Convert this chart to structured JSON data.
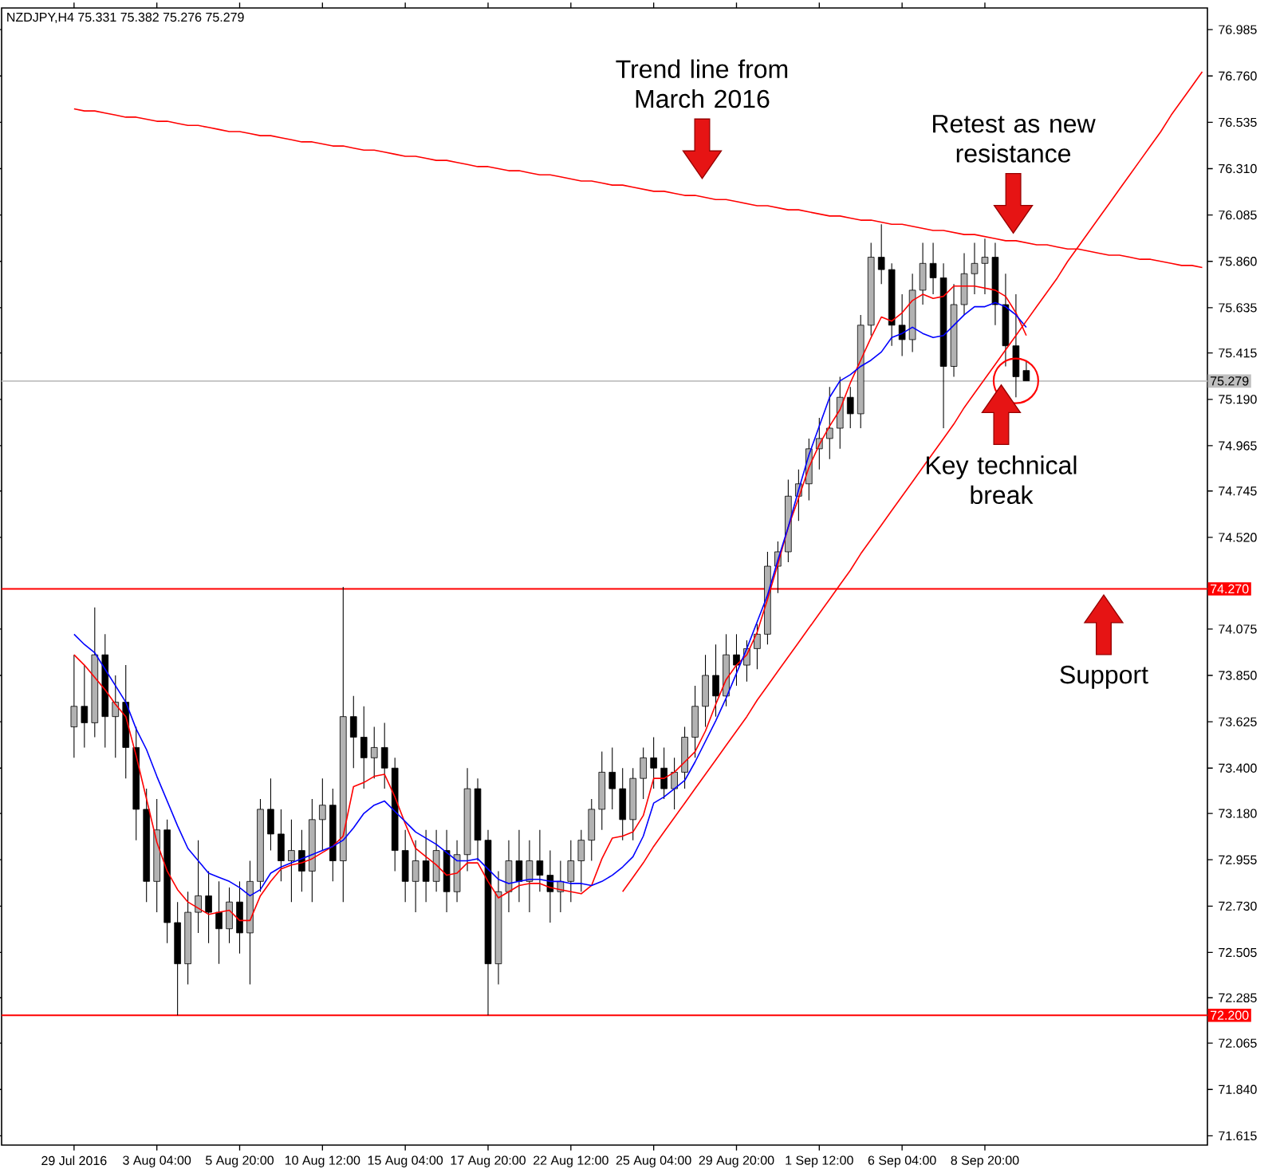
{
  "chart_data": {
    "type": "candlestick",
    "title": "NZDJPY,H4  75.331 75.382 75.276 75.279",
    "categories": [
      "29 Jul 2016",
      null,
      null,
      null,
      null,
      null,
      null,
      null,
      "3 Aug 04:00",
      null,
      null,
      null,
      null,
      null,
      null,
      null,
      "5 Aug 20:00",
      null,
      null,
      null,
      null,
      null,
      null,
      null,
      "10 Aug 12:00",
      null,
      null,
      null,
      null,
      null,
      null,
      null,
      "15 Aug 04:00",
      null,
      null,
      null,
      null,
      null,
      null,
      null,
      "17 Aug 20:00",
      null,
      null,
      null,
      null,
      null,
      null,
      null,
      "22 Aug 12:00",
      null,
      null,
      null,
      null,
      null,
      null,
      null,
      "25 Aug 04:00",
      null,
      null,
      null,
      null,
      null,
      null,
      null,
      "29 Aug 20:00",
      null,
      null,
      null,
      null,
      null,
      null,
      null,
      "1 Sep 12:00",
      null,
      null,
      null,
      null,
      null,
      null,
      null,
      "6 Sep 04:00",
      null,
      null,
      null,
      null,
      null,
      null,
      null,
      "8 Sep 20:00",
      null,
      null,
      null,
      null,
      null,
      null,
      null,
      null,
      null,
      null,
      null,
      null,
      null,
      null,
      null,
      null,
      null,
      null,
      null,
      null,
      null
    ],
    "ohlc": [
      [
        73.6,
        73.95,
        73.45,
        73.7
      ],
      [
        73.7,
        73.9,
        73.5,
        73.62
      ],
      [
        73.62,
        74.18,
        73.55,
        73.95
      ],
      [
        73.95,
        74.05,
        73.5,
        73.65
      ],
      [
        73.65,
        73.85,
        73.45,
        73.72
      ],
      [
        73.72,
        73.9,
        73.35,
        73.5
      ],
      [
        73.5,
        73.6,
        73.05,
        73.2
      ],
      [
        73.2,
        73.3,
        72.75,
        72.85
      ],
      [
        72.85,
        73.25,
        72.7,
        73.1
      ],
      [
        73.1,
        73.15,
        72.55,
        72.65
      ],
      [
        72.65,
        72.75,
        72.2,
        72.45
      ],
      [
        72.45,
        72.8,
        72.35,
        72.7
      ],
      [
        72.7,
        73.05,
        72.6,
        72.78
      ],
      [
        72.78,
        72.9,
        72.55,
        72.7
      ],
      [
        72.7,
        72.85,
        72.45,
        72.62
      ],
      [
        72.62,
        72.82,
        72.55,
        72.75
      ],
      [
        72.75,
        72.85,
        72.5,
        72.6
      ],
      [
        72.6,
        72.95,
        72.35,
        72.85
      ],
      [
        72.85,
        73.25,
        72.8,
        73.2
      ],
      [
        73.2,
        73.35,
        73.0,
        73.08
      ],
      [
        73.08,
        73.2,
        72.85,
        72.95
      ],
      [
        72.95,
        73.15,
        72.75,
        73.0
      ],
      [
        73.0,
        73.1,
        72.8,
        72.9
      ],
      [
        72.9,
        73.25,
        72.75,
        73.15
      ],
      [
        73.15,
        73.35,
        73.0,
        73.22
      ],
      [
        73.22,
        73.3,
        72.85,
        72.95
      ],
      [
        72.95,
        74.28,
        72.75,
        73.65
      ],
      [
        73.65,
        73.75,
        73.4,
        73.55
      ],
      [
        73.55,
        73.7,
        73.3,
        73.45
      ],
      [
        73.45,
        73.6,
        73.35,
        73.5
      ],
      [
        73.5,
        73.62,
        73.3,
        73.4
      ],
      [
        73.4,
        73.45,
        72.9,
        73.0
      ],
      [
        73.0,
        73.1,
        72.75,
        72.85
      ],
      [
        72.85,
        73.05,
        72.7,
        72.95
      ],
      [
        72.95,
        73.1,
        72.75,
        72.85
      ],
      [
        72.85,
        73.1,
        72.8,
        73.0
      ],
      [
        73.0,
        73.1,
        72.7,
        72.8
      ],
      [
        72.8,
        73.05,
        72.75,
        72.98
      ],
      [
        72.98,
        73.4,
        72.9,
        73.3
      ],
      [
        73.3,
        73.35,
        72.95,
        73.05
      ],
      [
        73.05,
        73.1,
        72.2,
        72.45
      ],
      [
        72.45,
        72.9,
        72.35,
        72.8
      ],
      [
        72.8,
        73.05,
        72.7,
        72.95
      ],
      [
        72.95,
        73.1,
        72.75,
        72.85
      ],
      [
        72.85,
        73.05,
        72.7,
        72.95
      ],
      [
        72.95,
        73.1,
        72.8,
        72.88
      ],
      [
        72.88,
        73.0,
        72.65,
        72.8
      ],
      [
        72.8,
        72.95,
        72.7,
        72.85
      ],
      [
        72.85,
        73.05,
        72.75,
        72.95
      ],
      [
        72.95,
        73.1,
        72.8,
        73.05
      ],
      [
        73.05,
        73.25,
        72.95,
        73.2
      ],
      [
        73.2,
        73.48,
        73.1,
        73.38
      ],
      [
        73.38,
        73.5,
        73.2,
        73.3
      ],
      [
        73.3,
        73.4,
        73.05,
        73.15
      ],
      [
        73.15,
        73.4,
        73.05,
        73.35
      ],
      [
        73.35,
        73.5,
        73.25,
        73.45
      ],
      [
        73.45,
        73.55,
        73.3,
        73.4
      ],
      [
        73.4,
        73.5,
        73.25,
        73.3
      ],
      [
        73.3,
        73.45,
        73.2,
        73.38
      ],
      [
        73.38,
        73.6,
        73.3,
        73.55
      ],
      [
        73.55,
        73.8,
        73.45,
        73.7
      ],
      [
        73.7,
        73.95,
        73.6,
        73.85
      ],
      [
        73.85,
        74.0,
        73.65,
        73.75
      ],
      [
        73.75,
        74.05,
        73.7,
        73.95
      ],
      [
        73.95,
        74.05,
        73.8,
        73.9
      ],
      [
        73.9,
        74.02,
        73.82,
        73.98
      ],
      [
        73.98,
        74.1,
        73.88,
        74.05
      ],
      [
        74.05,
        74.45,
        74.0,
        74.38
      ],
      [
        74.38,
        74.5,
        74.25,
        74.45
      ],
      [
        74.45,
        74.8,
        74.4,
        74.72
      ],
      [
        74.72,
        74.85,
        74.6,
        74.78
      ],
      [
        74.78,
        75.0,
        74.7,
        74.95
      ],
      [
        74.95,
        75.1,
        74.85,
        75.0
      ],
      [
        75.0,
        75.25,
        74.9,
        75.05
      ],
      [
        75.05,
        75.3,
        74.95,
        75.2
      ],
      [
        75.2,
        75.25,
        75.05,
        75.12
      ],
      [
        75.12,
        75.6,
        75.05,
        75.55
      ],
      [
        75.55,
        75.95,
        75.5,
        75.88
      ],
      [
        75.88,
        76.04,
        75.75,
        75.82
      ],
      [
        75.82,
        75.85,
        75.45,
        75.55
      ],
      [
        75.55,
        75.7,
        75.4,
        75.48
      ],
      [
        75.48,
        75.8,
        75.42,
        75.72
      ],
      [
        75.72,
        75.95,
        75.65,
        75.85
      ],
      [
        75.85,
        75.95,
        75.7,
        75.78
      ],
      [
        75.78,
        75.85,
        75.05,
        75.35
      ],
      [
        75.35,
        75.75,
        75.3,
        75.65
      ],
      [
        75.65,
        75.9,
        75.6,
        75.8
      ],
      [
        75.8,
        75.95,
        75.7,
        75.85
      ],
      [
        75.85,
        75.97,
        75.7,
        75.88
      ],
      [
        75.88,
        75.95,
        75.55,
        75.65
      ],
      [
        75.65,
        75.8,
        75.35,
        75.45
      ],
      [
        75.45,
        75.7,
        75.2,
        75.3
      ],
      [
        75.33,
        75.38,
        75.28,
        75.28
      ],
      null,
      null,
      null,
      null,
      null,
      null,
      null,
      null,
      null,
      null,
      null,
      null,
      null,
      null,
      null,
      null,
      null
    ],
    "series": [
      {
        "type": "line",
        "color": "#ff0000",
        "values": [
          73.95,
          73.9,
          73.84,
          73.78,
          73.71,
          73.65,
          73.46,
          73.25,
          73.04,
          72.9,
          72.81,
          72.75,
          72.72,
          72.69,
          72.7,
          72.71,
          72.66,
          72.66,
          72.78,
          72.85,
          72.91,
          72.93,
          72.94,
          72.96,
          72.99,
          73.02,
          73.07,
          73.31,
          73.33,
          73.36,
          73.37,
          73.26,
          73.13,
          73.01,
          72.97,
          72.93,
          72.88,
          72.89,
          72.94,
          72.94,
          72.85,
          72.77,
          72.8,
          72.83,
          72.84,
          72.84,
          72.82,
          72.81,
          72.8,
          72.79,
          72.83,
          72.96,
          73.06,
          73.07,
          73.09,
          73.17,
          73.35,
          73.35,
          73.38,
          73.43,
          73.48,
          73.58,
          73.71,
          73.83,
          73.9,
          73.95,
          74.06,
          74.22,
          74.39,
          74.57,
          74.71,
          74.86,
          74.97,
          75.06,
          75.14,
          75.27,
          75.38,
          75.49,
          75.59,
          75.57,
          75.61,
          75.67,
          75.7,
          75.68,
          75.69,
          75.74,
          75.74,
          75.74,
          75.73,
          75.72,
          75.69,
          75.61,
          75.5,
          null,
          null,
          null,
          null,
          null,
          null,
          null,
          null,
          null,
          null,
          null,
          null,
          null,
          null,
          null,
          null,
          null
        ]
      },
      {
        "type": "line",
        "color": "#0000ff",
        "values": [
          74.05,
          74.0,
          73.96,
          73.88,
          73.8,
          73.72,
          73.59,
          73.49,
          73.36,
          73.24,
          73.12,
          73.01,
          72.95,
          72.89,
          72.87,
          72.85,
          72.82,
          72.78,
          72.81,
          72.89,
          72.92,
          72.94,
          72.96,
          72.98,
          73.0,
          73.02,
          73.05,
          73.11,
          73.18,
          73.22,
          73.24,
          73.19,
          73.14,
          73.09,
          73.06,
          73.03,
          72.99,
          72.95,
          72.95,
          72.96,
          72.91,
          72.86,
          72.84,
          72.85,
          72.86,
          72.86,
          72.85,
          72.85,
          72.84,
          72.84,
          72.83,
          72.85,
          72.88,
          72.92,
          72.97,
          73.07,
          73.23,
          73.26,
          73.3,
          73.34,
          73.43,
          73.53,
          73.63,
          73.74,
          73.86,
          73.98,
          74.11,
          74.24,
          74.41,
          74.57,
          74.75,
          74.92,
          75.06,
          75.2,
          75.28,
          75.31,
          75.35,
          75.38,
          75.42,
          75.49,
          75.51,
          75.54,
          75.51,
          75.49,
          75.5,
          75.55,
          75.6,
          75.64,
          75.64,
          75.66,
          75.64,
          75.6,
          75.54,
          null,
          null,
          null,
          null,
          null,
          null,
          null,
          null,
          null,
          null,
          null,
          null,
          null,
          null,
          null,
          null,
          null
        ]
      },
      {
        "type": "line",
        "color": "#ff0000",
        "values": [
          76.6,
          76.59,
          76.59,
          76.58,
          76.57,
          76.56,
          76.56,
          76.55,
          76.54,
          76.54,
          76.53,
          76.52,
          76.52,
          76.51,
          76.5,
          76.49,
          76.49,
          76.48,
          76.47,
          76.47,
          76.46,
          76.45,
          76.44,
          76.44,
          76.43,
          76.42,
          76.42,
          76.41,
          76.4,
          76.4,
          76.39,
          76.38,
          76.37,
          76.37,
          76.36,
          76.35,
          76.35,
          76.34,
          76.33,
          76.32,
          76.32,
          76.31,
          76.3,
          76.3,
          76.29,
          76.28,
          76.28,
          76.27,
          76.26,
          76.25,
          76.25,
          76.24,
          76.23,
          76.23,
          76.22,
          76.21,
          76.2,
          76.2,
          76.19,
          76.18,
          76.18,
          76.17,
          76.16,
          76.16,
          76.15,
          76.14,
          76.13,
          76.13,
          76.12,
          76.11,
          76.11,
          76.1,
          76.09,
          76.08,
          76.08,
          76.07,
          76.06,
          76.06,
          76.05,
          76.04,
          76.04,
          76.03,
          76.02,
          76.01,
          76.01,
          76.0,
          75.99,
          75.99,
          75.98,
          75.97,
          75.96,
          75.96,
          75.95,
          75.94,
          75.94,
          75.93,
          75.92,
          75.92,
          75.91,
          75.9,
          75.89,
          75.89,
          75.88,
          75.87,
          75.87,
          75.86,
          75.85,
          75.84,
          75.84,
          75.83
        ]
      },
      {
        "type": "line",
        "color": "#ff0000",
        "values": [
          null,
          null,
          null,
          null,
          null,
          null,
          null,
          null,
          null,
          null,
          null,
          null,
          null,
          null,
          null,
          null,
          null,
          null,
          null,
          null,
          null,
          null,
          null,
          null,
          null,
          null,
          null,
          null,
          null,
          null,
          null,
          null,
          null,
          null,
          null,
          null,
          null,
          null,
          null,
          null,
          null,
          null,
          null,
          null,
          null,
          null,
          null,
          null,
          null,
          null,
          null,
          null,
          null,
          72.8,
          72.87,
          72.94,
          73.02,
          73.09,
          73.16,
          73.23,
          73.3,
          73.37,
          73.44,
          73.51,
          73.58,
          73.65,
          73.73,
          73.8,
          73.87,
          73.94,
          74.01,
          74.08,
          74.15,
          74.22,
          74.29,
          74.36,
          74.44,
          74.51,
          74.58,
          74.65,
          74.72,
          74.79,
          74.86,
          74.93,
          75.0,
          75.07,
          75.15,
          75.22,
          75.29,
          75.36,
          75.43,
          75.5,
          75.57,
          75.64,
          75.71,
          75.78,
          75.86,
          75.93,
          76.0,
          76.07,
          76.14,
          76.21,
          76.28,
          76.35,
          76.42,
          76.49,
          76.57,
          76.64,
          76.71,
          76.78
        ]
      }
    ],
    "ylim": [
      71.57,
      77.09
    ],
    "yticks": [
      76.985,
      {
        "value": 76.76,
        "label": "76.760"
      },
      76.535,
      {
        "value": 76.31,
        "label": "76.310"
      },
      76.085,
      {
        "value": 75.86,
        "label": "75.860"
      },
      75.635,
      75.415,
      {
        "value": 75.19,
        "label": "75.190"
      },
      74.965,
      74.745,
      {
        "value": 74.52,
        "label": "74.520"
      },
      74.075,
      {
        "value": 73.85,
        "label": "73.850"
      },
      73.625,
      {
        "value": 73.4,
        "label": "73.400"
      },
      {
        "value": 73.18,
        "label": "73.180"
      },
      72.955,
      {
        "value": 72.73,
        "label": "72.730"
      },
      72.505,
      72.285,
      72.065,
      {
        "value": 71.84,
        "label": "71.840"
      },
      71.615
    ],
    "ref_lines": [
      {
        "axis": "y",
        "value": 74.27,
        "label": "74.270",
        "color": "#ff0000"
      },
      {
        "axis": "y",
        "value": 72.2,
        "label": "72.200",
        "color": "#ff0000"
      },
      {
        "axis": "y",
        "value": 75.279,
        "label": "75.279",
        "color": "#c0c0c0"
      }
    ],
    "annotations": [
      "Trend line from March 2016",
      "Retest as new resistance",
      {
        "text": "Key technical break",
        "y": 75.26
      },
      {
        "text": "Support",
        "y": 74.24
      }
    ],
    "grid": false
  }
}
